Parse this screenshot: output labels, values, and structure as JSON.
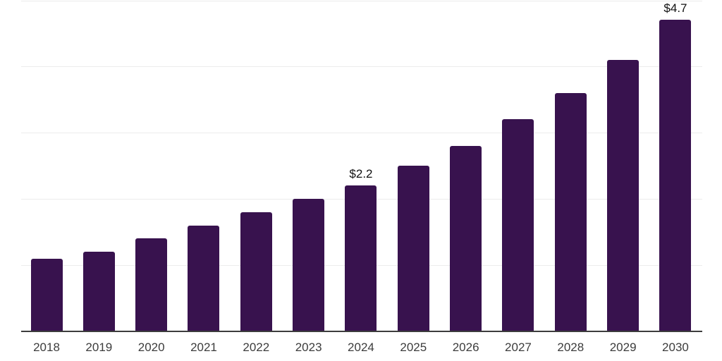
{
  "chart_data": {
    "type": "bar",
    "title": "",
    "xlabel": "",
    "ylabel": "",
    "categories": [
      "2018",
      "2019",
      "2020",
      "2021",
      "2022",
      "2023",
      "2024",
      "2025",
      "2026",
      "2027",
      "2028",
      "2029",
      "2030"
    ],
    "values": [
      1.1,
      1.2,
      1.4,
      1.6,
      1.8,
      2.0,
      2.2,
      2.5,
      2.8,
      3.2,
      3.6,
      4.1,
      4.7
    ],
    "data_labels": [
      {
        "category": "2024",
        "text": "$2.2"
      },
      {
        "category": "2030",
        "text": "$4.7"
      }
    ],
    "ylim": [
      0,
      5
    ],
    "gridline_values": [
      1,
      2,
      3,
      4,
      5
    ],
    "grid": "horizontal-only",
    "legend": "none",
    "y_axis_labels_visible": false,
    "currency_prefix": "$",
    "colors": {
      "bar": "#38124e",
      "gridline": "#ececec",
      "axis_line": "#3d3d3d",
      "x_label": "#3c3c3c",
      "value_label": "#111111",
      "background": "#ffffff"
    }
  }
}
